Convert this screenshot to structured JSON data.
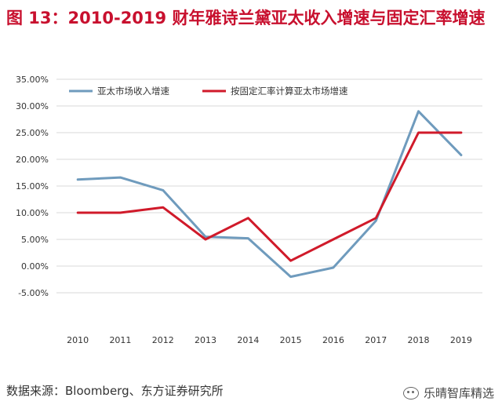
{
  "figure": {
    "title": "图 13：2010-2019 财年雅诗兰黛亚太收入增速与固定汇率增速",
    "source": "数据来源：Bloomberg、东方证券研究所",
    "watermark": "乐晴智库精选"
  },
  "colors": {
    "title": "#c8102e",
    "series1": "#6f9bbd",
    "series2": "#d01a2a",
    "grid": "#d9d9d9",
    "axis_text": "#333333"
  },
  "chart_data": {
    "type": "line",
    "x": [
      "2010",
      "2011",
      "2012",
      "2013",
      "2014",
      "2015",
      "2016",
      "2017",
      "2018",
      "2019"
    ],
    "series": [
      {
        "name": "亚太市场收入增速",
        "values": [
          16.2,
          16.6,
          14.2,
          5.5,
          5.2,
          -2.0,
          -0.3,
          8.5,
          29.0,
          20.8
        ]
      },
      {
        "name": "按固定汇率计算亚太市场增速",
        "values": [
          10.0,
          10.0,
          11.0,
          5.0,
          9.0,
          1.0,
          5.0,
          9.0,
          25.0,
          25.0
        ]
      }
    ],
    "yticks": [
      "35.00%",
      "30.00%",
      "25.00%",
      "20.00%",
      "15.00%",
      "10.00%",
      "5.00%",
      "0.00%",
      "-5.00%"
    ],
    "ylim": [
      -5,
      35
    ],
    "grid": true,
    "legend_position": "top"
  }
}
